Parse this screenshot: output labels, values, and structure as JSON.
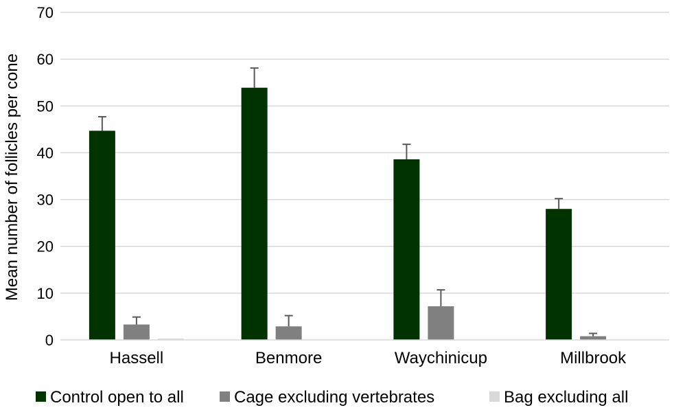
{
  "chart_data": {
    "type": "bar",
    "title": "",
    "xlabel": "",
    "ylabel": "Mean number of follicles per cone",
    "ylim": [
      0,
      70
    ],
    "yticks": [
      0,
      10,
      20,
      30,
      40,
      50,
      60,
      70
    ],
    "grid": true,
    "legend_position": "bottom",
    "categories": [
      "Hassell",
      "Benmore",
      "Waychinicup",
      "Millbrook"
    ],
    "series": [
      {
        "name": "Control open to all",
        "color": "#003300",
        "values": [
          44.7,
          53.9,
          38.6,
          28.0
        ],
        "errors": [
          3.0,
          4.2,
          3.2,
          2.2
        ]
      },
      {
        "name": "Cage excluding vertebrates",
        "color": "#808080",
        "values": [
          3.3,
          2.9,
          7.2,
          0.8
        ],
        "errors": [
          1.6,
          2.3,
          3.5,
          0.6
        ]
      },
      {
        "name": "Bag excluding all",
        "color": "#d9d9d9",
        "values": [
          0.3,
          0,
          0,
          0
        ],
        "errors": [
          0,
          0,
          0,
          0
        ]
      }
    ]
  }
}
